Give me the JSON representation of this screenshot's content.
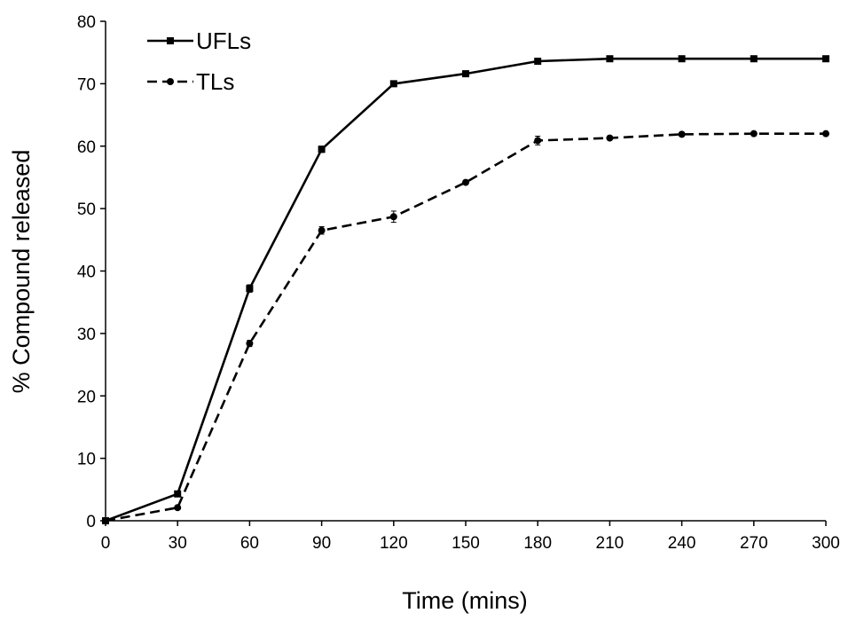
{
  "chart_data": {
    "type": "line",
    "title": "",
    "xlabel": "Time (mins)",
    "ylabel": "% Compound released",
    "x": [
      0,
      30,
      60,
      90,
      120,
      150,
      180,
      210,
      240,
      270,
      300
    ],
    "xlim": [
      0,
      300
    ],
    "ylim": [
      0,
      80
    ],
    "xticks": [
      "0",
      "30",
      "60",
      "90",
      "120",
      "150",
      "180",
      "210",
      "240",
      "270",
      "300"
    ],
    "yticks": [
      "0",
      "10",
      "20",
      "30",
      "40",
      "50",
      "60",
      "70",
      "80"
    ],
    "grid": false,
    "legend_position": "top-left",
    "series": [
      {
        "name": "UFLs",
        "line_style": "solid",
        "marker": "square",
        "color": "#000000",
        "values": [
          0,
          4.3,
          37.2,
          59.5,
          70.0,
          71.6,
          73.6,
          74.0,
          74.0,
          74.0,
          74.0
        ],
        "errors": [
          0,
          0.4,
          0.6,
          0.5,
          0.3,
          0.3,
          0.4,
          0.2,
          0.2,
          0.2,
          0.2
        ]
      },
      {
        "name": "TLs",
        "line_style": "dashed",
        "marker": "circle",
        "color": "#000000",
        "values": [
          0,
          2.1,
          28.4,
          46.5,
          48.7,
          54.2,
          60.9,
          61.3,
          61.9,
          62.0,
          62.0
        ],
        "errors": [
          0,
          0.3,
          0.5,
          0.6,
          0.9,
          0.3,
          0.7,
          0.3,
          0.3,
          0.3,
          0.2
        ]
      }
    ]
  }
}
